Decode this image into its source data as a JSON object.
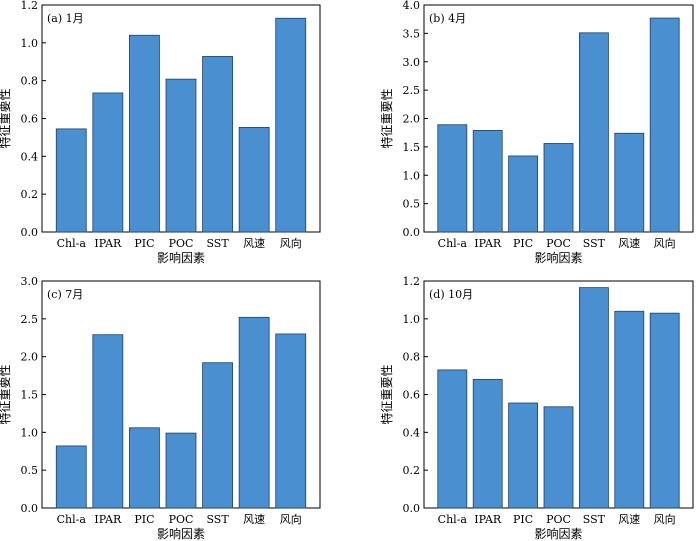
{
  "chart_data": [
    {
      "type": "bar",
      "title": "(a) 1月",
      "xlabel": "影响因素",
      "ylabel": "特征重要性",
      "categories": [
        "Chl-a",
        "IPAR",
        "PIC",
        "POC",
        "SST",
        "风速",
        "风向"
      ],
      "values": [
        0.545,
        0.735,
        1.04,
        0.808,
        0.928,
        0.553,
        1.13
      ],
      "ylim": [
        0,
        1.2
      ],
      "yticks": [
        0.0,
        0.2,
        0.4,
        0.6,
        0.8,
        1.0,
        1.2
      ],
      "ytick_labels": [
        "0.0",
        "0.2",
        "0.4",
        "0.6",
        "0.8",
        "1.0",
        "1.2"
      ],
      "bar_color": "#4a90d0",
      "grid": false
    },
    {
      "type": "bar",
      "title": "(b) 4月",
      "xlabel": "影响因素",
      "ylabel": "特征重要性",
      "categories": [
        "Chl-a",
        "IPAR",
        "PIC",
        "POC",
        "SST",
        "风速",
        "风向"
      ],
      "values": [
        1.89,
        1.79,
        1.34,
        1.56,
        3.51,
        1.74,
        3.77
      ],
      "ylim": [
        0,
        4.0
      ],
      "yticks": [
        0.0,
        0.5,
        1.0,
        1.5,
        2.0,
        2.5,
        3.0,
        3.5,
        4.0
      ],
      "ytick_labels": [
        "0.0",
        "0.5",
        "1.0",
        "1.5",
        "2.0",
        "2.5",
        "3.0",
        "3.5",
        "4.0"
      ],
      "bar_color": "#4a90d0",
      "grid": false
    },
    {
      "type": "bar",
      "title": "(c) 7月",
      "xlabel": "影响因素",
      "ylabel": "特征重要性",
      "categories": [
        "Chl-a",
        "IPAR",
        "PIC",
        "POC",
        "SST",
        "风速",
        "风向"
      ],
      "values": [
        0.82,
        2.29,
        1.06,
        0.99,
        1.92,
        2.52,
        2.3
      ],
      "ylim": [
        0,
        3.0
      ],
      "yticks": [
        0.0,
        0.5,
        1.0,
        1.5,
        2.0,
        2.5,
        3.0
      ],
      "ytick_labels": [
        "0.0",
        "0.5",
        "1.0",
        "1.5",
        "2.0",
        "2.5",
        "3.0"
      ],
      "bar_color": "#4a90d0",
      "grid": false
    },
    {
      "type": "bar",
      "title": "(d) 10月",
      "xlabel": "影响因素",
      "ylabel": "特征重要性",
      "categories": [
        "Chl-a",
        "IPAR",
        "PIC",
        "POC",
        "SST",
        "风速",
        "风向"
      ],
      "values": [
        0.73,
        0.68,
        0.555,
        0.535,
        1.165,
        1.04,
        1.03
      ],
      "ylim": [
        0,
        1.2
      ],
      "yticks": [
        0.0,
        0.2,
        0.4,
        0.6,
        0.8,
        1.0,
        1.2
      ],
      "ytick_labels": [
        "0.0",
        "0.2",
        "0.4",
        "0.6",
        "0.8",
        "1.0",
        "1.2"
      ],
      "bar_color": "#4a90d0",
      "grid": false
    }
  ]
}
